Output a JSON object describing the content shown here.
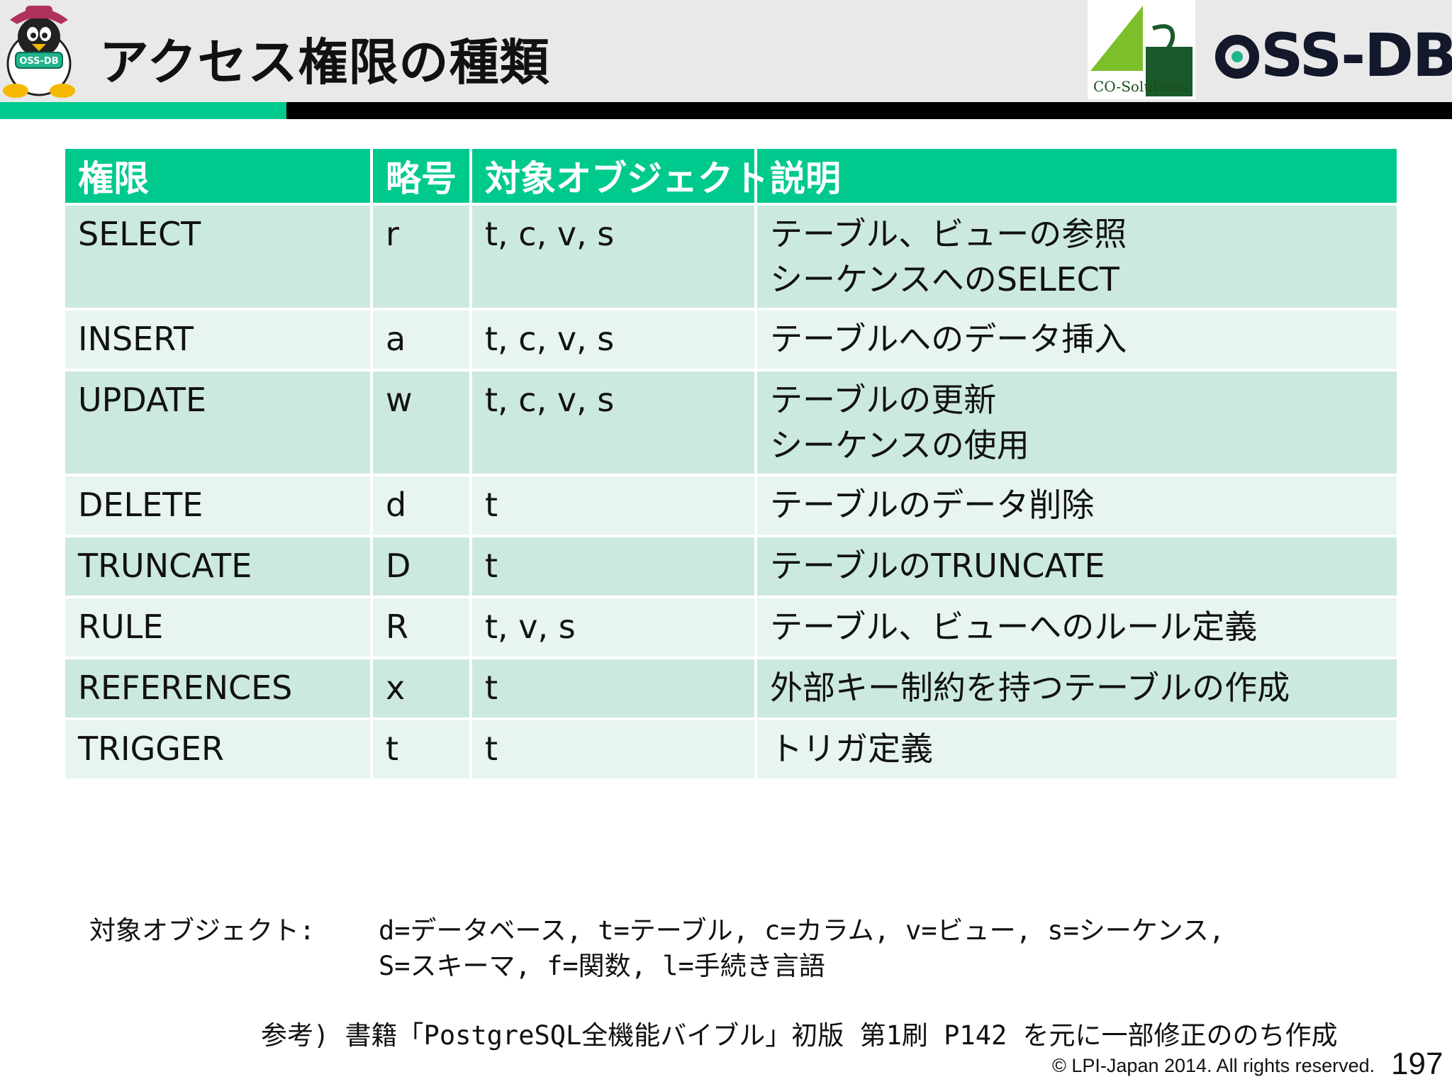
{
  "header": {
    "title": "アクセス権限の種類",
    "mascot_badge": "OSS-DB",
    "company_logo_text": "CO-Solutions",
    "product_logo_text": "SS-DB",
    "colors": {
      "accent": "#00c98e",
      "bar": "#000000",
      "header_bg": "#e9e9e9"
    }
  },
  "table": {
    "headers": [
      "権限",
      "略号",
      "対象オブジェクト",
      "説明"
    ],
    "rows": [
      {
        "privilege": "SELECT",
        "abbr": "r",
        "objects": "t, c, v, s",
        "desc": [
          "テーブル、ビューの参照",
          "シーケンスへのSELECT"
        ]
      },
      {
        "privilege": "INSERT",
        "abbr": "a",
        "objects": "t, c, v, s",
        "desc": [
          "テーブルへのデータ挿入"
        ]
      },
      {
        "privilege": "UPDATE",
        "abbr": "w",
        "objects": "t, c, v, s",
        "desc": [
          "テーブルの更新",
          "シーケンスの使用"
        ]
      },
      {
        "privilege": "DELETE",
        "abbr": "d",
        "objects": "t",
        "desc": [
          "テーブルのデータ削除"
        ]
      },
      {
        "privilege": "TRUNCATE",
        "abbr": "D",
        "objects": "t",
        "desc": [
          "テーブルのTRUNCATE"
        ]
      },
      {
        "privilege": "RULE",
        "abbr": "R",
        "objects": "t, v, s",
        "desc": [
          "テーブル、ビューへのルール定義"
        ]
      },
      {
        "privilege": "REFERENCES",
        "abbr": "x",
        "objects": "t",
        "desc": [
          "外部キー制約を持つテーブルの作成"
        ]
      },
      {
        "privilege": "TRIGGER",
        "abbr": "t",
        "objects": "t",
        "desc": [
          "トリガ定義"
        ]
      }
    ]
  },
  "legend": {
    "label": "対象オブジェクト:",
    "line1": "d=データベース, t=テーブル, c=カラム, v=ビュー, s=シーケンス,",
    "line2": "S=スキーマ, f=関数, l=手続き言語"
  },
  "reference": "参考) 書籍「PostgreSQL全機能バイブル」初版 第1刷 P142 を元に一部修正ののち作成",
  "footer": {
    "copyright": "© LPI-Japan 2014. All rights reserved.",
    "page_number": "197"
  }
}
